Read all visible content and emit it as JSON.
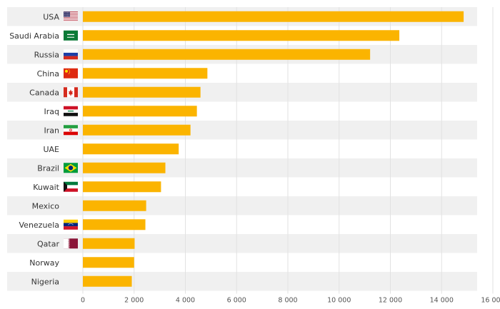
{
  "chart_data": {
    "type": "bar",
    "orientation": "horizontal",
    "title": "",
    "xlabel": "",
    "ylabel": "",
    "categories": [
      "USA",
      "Saudi Arabia",
      "Russia",
      "China",
      "Canada",
      "Iraq",
      "Iran",
      "UAE",
      "Brazil",
      "Kuwait",
      "Mexico",
      "Venezuela",
      "Qatar",
      "Norway",
      "Nigeria"
    ],
    "values": [
      14860,
      12350,
      11210,
      4860,
      4590,
      4450,
      4200,
      3740,
      3220,
      3050,
      2470,
      2440,
      2020,
      2000,
      1910
    ],
    "xlim": [
      0,
      16000
    ],
    "xticks": [
      0,
      2000,
      4000,
      6000,
      8000,
      10000,
      12000,
      14000,
      16000
    ],
    "xtick_labels": [
      "0",
      "2 000",
      "4 000",
      "6 000",
      "8 000",
      "10 000",
      "12 000",
      "14 000",
      "16 000"
    ],
    "grid": true,
    "flag_icons": [
      "us-flag-icon",
      "saudi-arabia-flag-icon",
      "russia-flag-icon",
      "china-flag-icon",
      "canada-flag-icon",
      "iraq-flag-icon",
      "iran-flag-icon",
      "",
      "brazil-flag-icon",
      "kuwait-flag-icon",
      "",
      "venezuela-flag-icon",
      "qatar-flag-icon",
      "",
      ""
    ],
    "colors": {
      "bar": "#fbb400",
      "row_shade": "#f0f0f0",
      "grid": "#e2e2e2",
      "text": "#333333",
      "tick_text": "#555555"
    }
  }
}
